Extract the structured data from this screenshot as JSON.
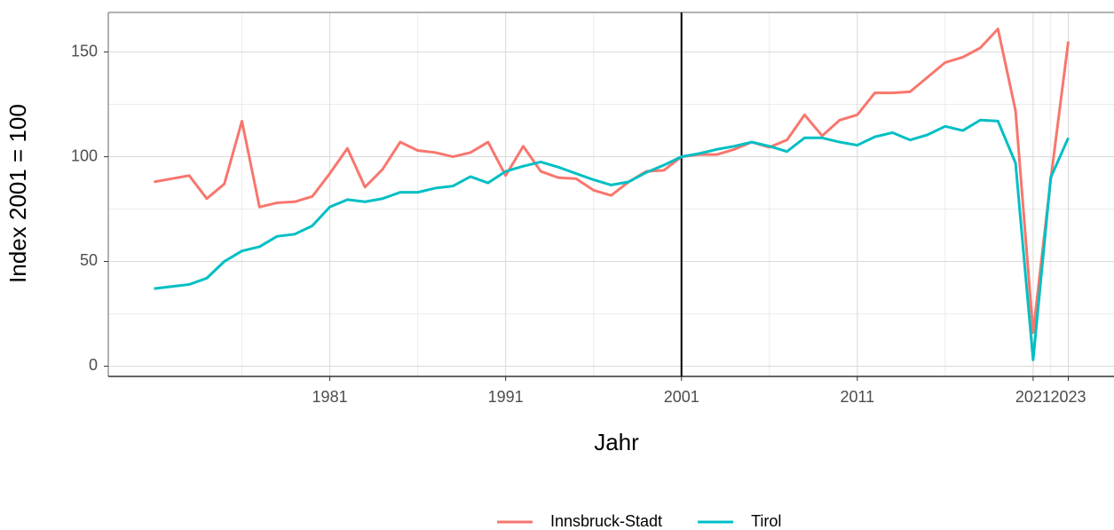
{
  "chart_data": {
    "type": "line",
    "xlabel": "Jahr",
    "ylabel": "Index 2001 = 100",
    "x": [
      1971,
      1972,
      1973,
      1974,
      1975,
      1976,
      1977,
      1978,
      1979,
      1980,
      1981,
      1982,
      1983,
      1984,
      1985,
      1986,
      1987,
      1988,
      1989,
      1990,
      1991,
      1992,
      1993,
      1994,
      1995,
      1996,
      1997,
      1998,
      1999,
      2000,
      2001,
      2002,
      2003,
      2004,
      2005,
      2006,
      2007,
      2008,
      2009,
      2010,
      2011,
      2012,
      2013,
      2014,
      2015,
      2016,
      2017,
      2018,
      2019,
      2020,
      2021,
      2022,
      2023
    ],
    "series": [
      {
        "name": "Innsbruck-Stadt",
        "color": "#f8766d",
        "values": [
          88,
          89.5,
          91,
          80,
          87,
          117,
          76,
          78,
          78.5,
          81,
          92,
          104,
          85.5,
          94,
          107,
          103,
          102,
          100,
          102,
          107,
          91,
          105,
          93,
          90,
          89.5,
          84,
          81.5,
          88,
          93,
          93.5,
          100,
          101,
          101,
          103.5,
          107,
          104.5,
          108,
          120,
          110,
          117.5,
          120,
          130.5,
          130.5,
          131,
          138,
          145,
          147.5,
          152,
          161,
          122,
          16,
          89,
          155
        ]
      },
      {
        "name": "Tirol",
        "color": "#00bfc4",
        "values": [
          37,
          38,
          39,
          42,
          50,
          55,
          57,
          62,
          63,
          67,
          76,
          79.5,
          78.5,
          80,
          83,
          83,
          85,
          86,
          90.5,
          87.5,
          93,
          95.5,
          97.5,
          95,
          92,
          89,
          86.5,
          88,
          92.5,
          96,
          100,
          101.5,
          103.5,
          105,
          107,
          105,
          102.5,
          109,
          109,
          107,
          105.5,
          109.5,
          111.5,
          108,
          110.5,
          114.5,
          112.5,
          117.5,
          117,
          97,
          3,
          90,
          109
        ]
      }
    ],
    "xlim": [
      1968.4,
      2025.6
    ],
    "xticks": [
      1981,
      1991,
      2001,
      2011,
      2021,
      2023
    ],
    "minor_xticks": [
      1976,
      1986,
      1996,
      2006,
      2016,
      2022
    ],
    "ylim": [
      -4.9,
      168.9
    ],
    "yticks": [
      0,
      50,
      100,
      150
    ],
    "minor_yticks": [
      25,
      75,
      125
    ],
    "vline": 2001,
    "grid": true,
    "legend": "bottom"
  }
}
